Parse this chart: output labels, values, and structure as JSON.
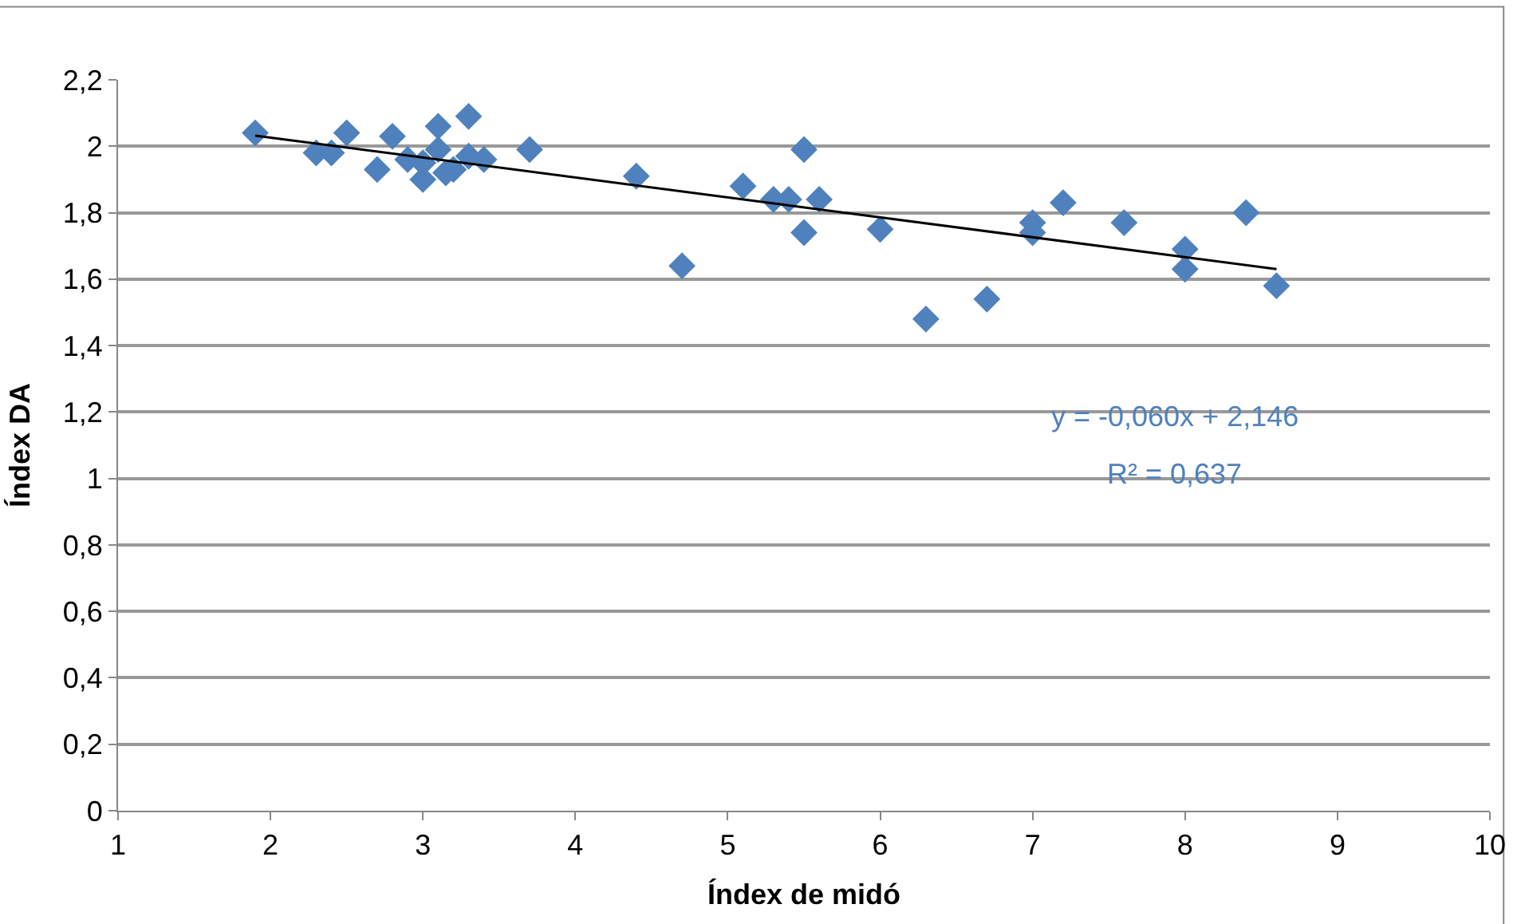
{
  "chart_data": {
    "type": "scatter",
    "xlabel": "Índex de midó",
    "ylabel": "Índex DA",
    "xlim": [
      1,
      10
    ],
    "xticks": [
      1,
      2,
      3,
      4,
      5,
      6,
      7,
      8,
      9,
      10
    ],
    "ylim": [
      0,
      2.2
    ],
    "yticks": [
      {
        "value": 0,
        "label": "0"
      },
      {
        "value": 0.2,
        "label": "0,2"
      },
      {
        "value": 0.4,
        "label": "0,4"
      },
      {
        "value": 0.6,
        "label": "0,6"
      },
      {
        "value": 0.8,
        "label": "0,8"
      },
      {
        "value": 1,
        "label": "1"
      },
      {
        "value": 1.2,
        "label": "1,2"
      },
      {
        "value": 1.4,
        "label": "1,4"
      },
      {
        "value": 1.6,
        "label": "1,6"
      },
      {
        "value": 1.8,
        "label": "1,8"
      },
      {
        "value": 2,
        "label": "2"
      },
      {
        "value": 2.2,
        "label": "2,2"
      }
    ],
    "grid": "y",
    "legend": false,
    "annotations": [
      "y = -0,060x + 2,146",
      "R² = 0,637"
    ],
    "series": [
      {
        "marker": "diamond",
        "color": "#4f81bd",
        "x": [
          1.9,
          2.3,
          2.4,
          2.5,
          2.7,
          2.8,
          2.9,
          3.0,
          3.0,
          3.1,
          3.1,
          3.15,
          3.2,
          3.3,
          3.3,
          3.4,
          3.7,
          4.4,
          4.7,
          5.1,
          5.3,
          5.4,
          5.5,
          5.5,
          5.6,
          6.0,
          6.3,
          6.7,
          7.0,
          7.0,
          7.2,
          7.6,
          8.0,
          8.0,
          8.4,
          8.6
        ],
        "values": [
          2.04,
          1.98,
          1.98,
          2.04,
          1.93,
          2.03,
          1.96,
          1.9,
          1.95,
          2.06,
          1.99,
          1.92,
          1.93,
          2.09,
          1.97,
          1.96,
          1.99,
          1.91,
          1.64,
          1.88,
          1.84,
          1.84,
          1.99,
          1.74,
          1.84,
          1.75,
          1.48,
          1.54,
          1.77,
          1.74,
          1.83,
          1.77,
          1.69,
          1.63,
          1.8,
          1.58
        ]
      },
      {
        "type": "line",
        "marker": "none",
        "color": "#000000",
        "x": [
          1.9,
          8.6
        ],
        "values": [
          2.032,
          1.63
        ]
      }
    ]
  }
}
